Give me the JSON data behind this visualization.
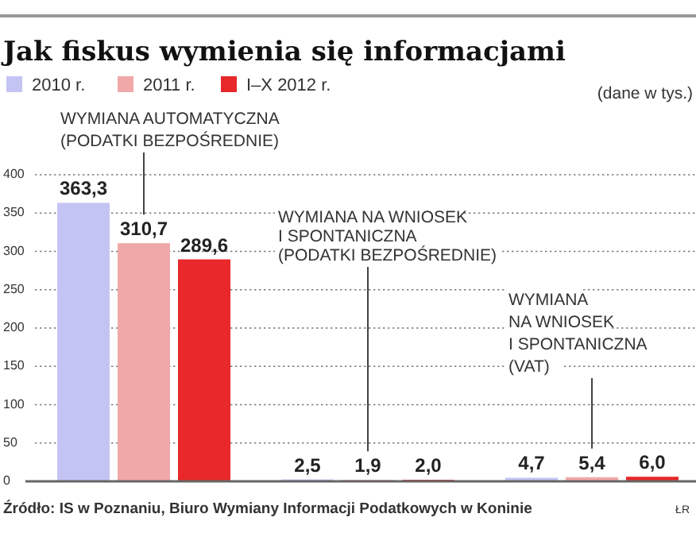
{
  "chart_data": {
    "type": "bar",
    "title": "Jak fiskus wymienia się informacjami",
    "subtitle": "(dane w tys.)",
    "categories": [
      "WYMIANA AUTOMATYCZNA\n(PODATKI BEZPOŚREDNIE)",
      "WYMIANA NA WNIOSEK\nI SPONTANICZNA\n(PODATKI BEZPOŚREDNIE)",
      "WYMIANA\nNA WNIOSEK\nI SPONTANICZNA\n(VAT)"
    ],
    "series": [
      {
        "name": "2010 r.",
        "color": "#c4c4f4",
        "values": [
          363.3,
          2.5,
          4.7
        ],
        "value_labels": [
          "363,3",
          "2,5",
          "4,7"
        ]
      },
      {
        "name": "2011 r.",
        "color": "#f0a8a8",
        "values": [
          310.7,
          1.9,
          5.4
        ],
        "value_labels": [
          "310,7",
          "1,9",
          "5,4"
        ]
      },
      {
        "name": "I–X 2012 r.",
        "color": "#e8282a",
        "values": [
          289.6,
          2.0,
          6.0
        ],
        "value_labels": [
          "289,6",
          "2,0",
          "6,0"
        ]
      }
    ],
    "ylim": [
      0,
      400
    ],
    "yticks": [
      0,
      50,
      100,
      150,
      200,
      250,
      300,
      350,
      400
    ],
    "grid": "y",
    "legend": "top left",
    "annotations": [
      "Źródło: IS w Poznaniu, Biuro Wymiany Informacji Podatkowych w Koninie",
      "ŁR"
    ]
  }
}
